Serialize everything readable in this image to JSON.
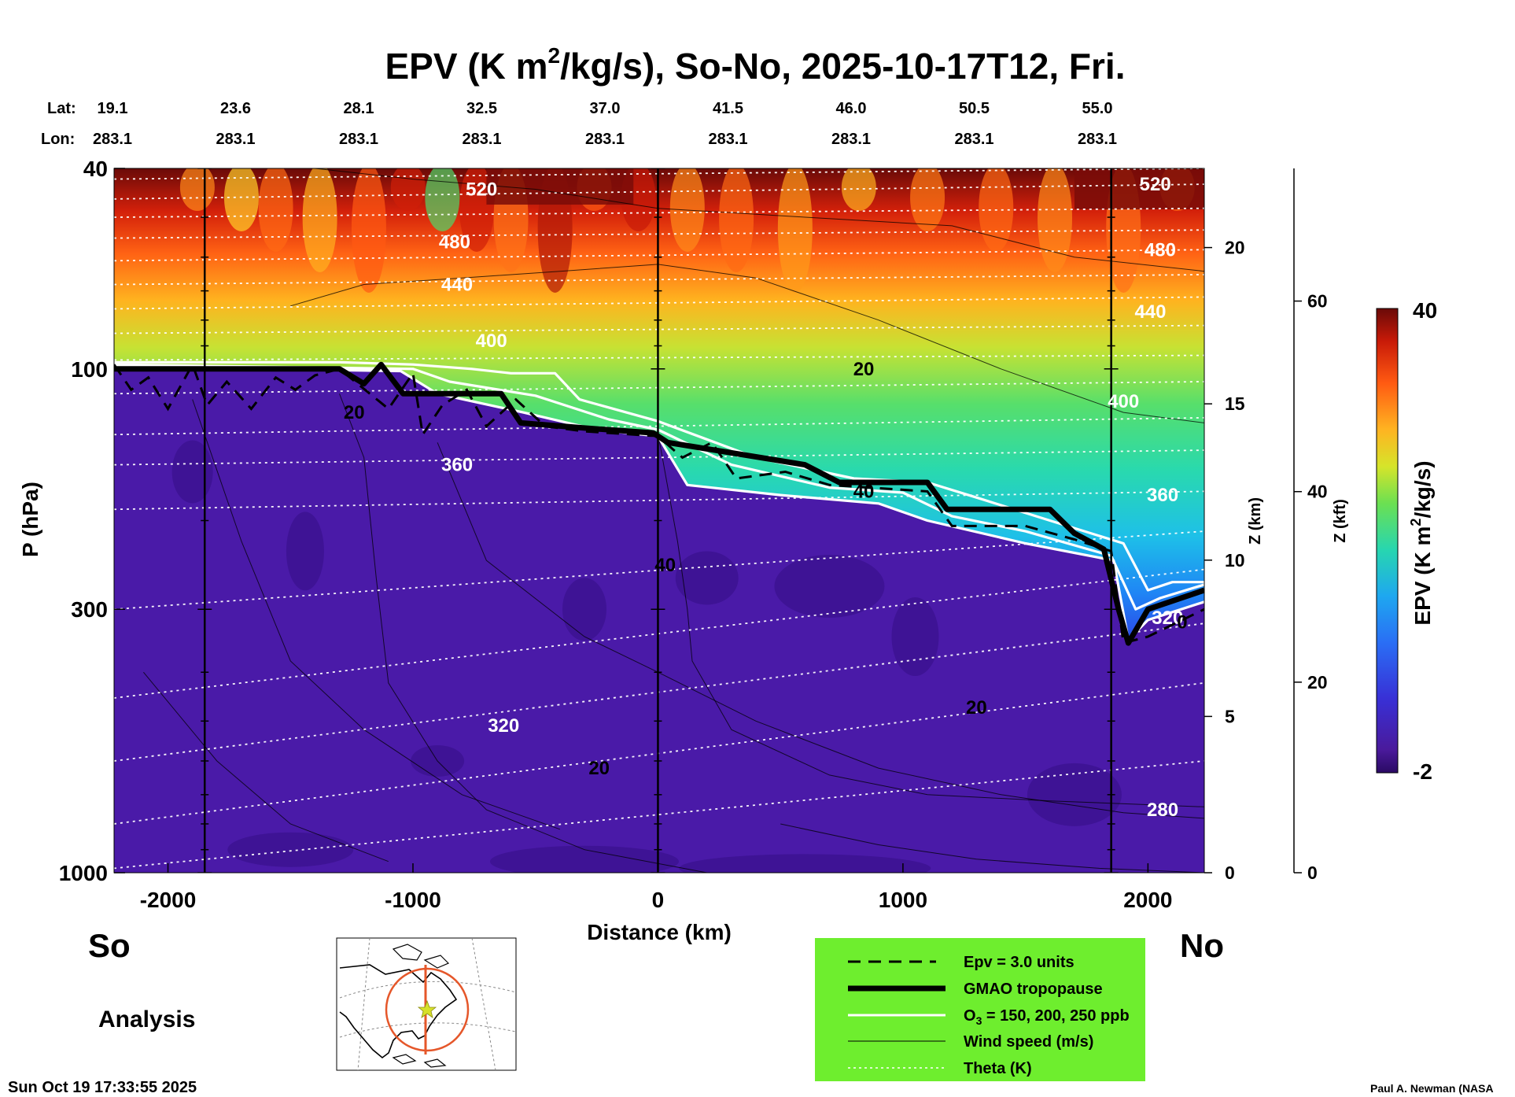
{
  "title": {
    "main_prefix": "EPV (K m",
    "main_sup": "2",
    "main_suffix": "/kg/s), So-No, 2025-10-17T12, Fri."
  },
  "chart_data": {
    "type": "heatmap",
    "x_axis": {
      "label": "Distance (km)",
      "range": [
        -2220,
        2230
      ],
      "ticks": [
        -2000,
        -1000,
        0,
        1000,
        2000
      ]
    },
    "y_axis": {
      "label": "P (hPa)",
      "scale": "log",
      "range": [
        1000,
        40
      ],
      "ticks": [
        40,
        100,
        300,
        1000
      ]
    },
    "z_km_axis": {
      "label": "Z (km)",
      "ticks": [
        0,
        5,
        10,
        15,
        20
      ]
    },
    "z_kft_axis": {
      "label": "Z (kft)",
      "ticks": [
        0,
        20,
        40,
        60
      ]
    },
    "top_axis": {
      "lat_label": "Lat:",
      "lon_label": "Lon:",
      "lat": [
        "19.1",
        "23.6",
        "28.1",
        "32.5",
        "37.0",
        "41.5",
        "46.0",
        "50.5",
        "55.0"
      ],
      "lon": [
        "283.1",
        "283.1",
        "283.1",
        "283.1",
        "283.1",
        "283.1",
        "283.1",
        "283.1",
        "283.1"
      ]
    },
    "colorbar": {
      "label_prefix": "EPV (K m",
      "label_sup": "2",
      "label_suffix": "/kg/s)",
      "min": -2,
      "max": 40,
      "min_label": "-2",
      "max_label": "40"
    },
    "theta_levels": [
      {
        "label": "520",
        "p_left": 45,
        "p_right": 42
      },
      {
        "label": "480",
        "p_left": 55,
        "p_right": 53
      },
      {
        "label": "440",
        "p_left": 68,
        "p_right": 65
      },
      {
        "label": "400",
        "p_left": 85,
        "p_right": 84
      },
      {
        "label": "360",
        "p_left": 155,
        "p_right": 110
      },
      {
        "label": "320",
        "p_left": 300,
        "p_right": 150
      },
      {
        "label": "280",
        "p_left": 600,
        "p_right": 230
      }
    ],
    "theta_label_positions": [
      {
        "label": "520",
        "x": -720,
        "p": 44
      },
      {
        "label": "480",
        "x": -830,
        "p": 56
      },
      {
        "label": "440",
        "x": -820,
        "p": 68
      },
      {
        "label": "400",
        "x": -680,
        "p": 88
      },
      {
        "label": "360",
        "x": -820,
        "p": 155
      },
      {
        "label": "320",
        "x": -630,
        "p": 510
      },
      {
        "label": "520",
        "x": 2030,
        "p": 43
      },
      {
        "label": "480",
        "x": 2050,
        "p": 58
      },
      {
        "label": "440",
        "x": 2010,
        "p": 77
      },
      {
        "label": "400",
        "x": 1900,
        "p": 116
      },
      {
        "label": "360",
        "x": 2060,
        "p": 178
      },
      {
        "label": "320",
        "x": 2080,
        "p": 312
      },
      {
        "label": "280",
        "x": 2060,
        "p": 750
      }
    ],
    "wind_labels": [
      {
        "label": "20",
        "x": -1240,
        "p": 122
      },
      {
        "label": "20",
        "x": 840,
        "p": 100
      },
      {
        "label": "40",
        "x": 840,
        "p": 175
      },
      {
        "label": "40",
        "x": 30,
        "p": 245
      },
      {
        "label": "20",
        "x": 1300,
        "p": 470
      },
      {
        "label": "20",
        "x": -240,
        "p": 620
      },
      {
        "label": "0",
        "x": 2140,
        "p": 318
      }
    ],
    "tropopause": [
      [
        -2220,
        100
      ],
      [
        -1300,
        100
      ],
      [
        -1200,
        107
      ],
      [
        -1130,
        98
      ],
      [
        -1040,
        112
      ],
      [
        -640,
        112
      ],
      [
        -560,
        128
      ],
      [
        -300,
        131
      ],
      [
        -20,
        134
      ],
      [
        40,
        140
      ],
      [
        600,
        155
      ],
      [
        740,
        168
      ],
      [
        1100,
        168
      ],
      [
        1180,
        190
      ],
      [
        1600,
        190
      ],
      [
        1700,
        212
      ],
      [
        1820,
        228
      ],
      [
        1880,
        300
      ],
      [
        1920,
        350
      ],
      [
        2000,
        300
      ],
      [
        2230,
        275
      ]
    ],
    "ozone_150": [
      [
        -2220,
        97
      ],
      [
        -1300,
        97
      ],
      [
        -1000,
        98
      ],
      [
        -760,
        100
      ],
      [
        -600,
        102
      ],
      [
        -420,
        102
      ],
      [
        -320,
        115
      ],
      [
        0,
        127
      ],
      [
        400,
        150
      ],
      [
        800,
        165
      ],
      [
        1100,
        168
      ],
      [
        1300,
        180
      ],
      [
        1600,
        200
      ],
      [
        1900,
        222
      ],
      [
        2000,
        275
      ],
      [
        2100,
        265
      ],
      [
        2230,
        265
      ]
    ],
    "ozone_200": [
      [
        -2220,
        98
      ],
      [
        -1000,
        100
      ],
      [
        -850,
        106
      ],
      [
        -500,
        113
      ],
      [
        -200,
        126
      ],
      [
        0,
        132
      ],
      [
        300,
        155
      ],
      [
        700,
        172
      ],
      [
        1000,
        176
      ],
      [
        1200,
        196
      ],
      [
        1500,
        210
      ],
      [
        1850,
        235
      ],
      [
        1950,
        300
      ],
      [
        2050,
        285
      ],
      [
        2230,
        268
      ]
    ],
    "ozone_250": [
      [
        -2220,
        99
      ],
      [
        -1050,
        101
      ],
      [
        -900,
        112
      ],
      [
        -550,
        122
      ],
      [
        -250,
        132
      ],
      [
        0,
        136
      ],
      [
        120,
        170
      ],
      [
        500,
        178
      ],
      [
        900,
        185
      ],
      [
        1100,
        200
      ],
      [
        1500,
        222
      ],
      [
        1860,
        240
      ],
      [
        1920,
        345
      ],
      [
        2000,
        315
      ],
      [
        2230,
        290
      ]
    ],
    "epv3_contour": [
      [
        -2220,
        98
      ],
      [
        -2150,
        110
      ],
      [
        -2080,
        104
      ],
      [
        -2000,
        120
      ],
      [
        -1900,
        98
      ],
      [
        -1840,
        118
      ],
      [
        -1760,
        106
      ],
      [
        -1660,
        120
      ],
      [
        -1560,
        104
      ],
      [
        -1480,
        110
      ],
      [
        -1400,
        103
      ],
      [
        -1300,
        100
      ],
      [
        -1100,
        120
      ],
      [
        -1000,
        102
      ],
      [
        -960,
        135
      ],
      [
        -880,
        118
      ],
      [
        -780,
        110
      ],
      [
        -700,
        130
      ],
      [
        -580,
        115
      ],
      [
        -460,
        130
      ],
      [
        -300,
        133
      ],
      [
        0,
        136
      ],
      [
        100,
        150
      ],
      [
        220,
        140
      ],
      [
        320,
        165
      ],
      [
        520,
        160
      ],
      [
        700,
        170
      ],
      [
        1100,
        175
      ],
      [
        1200,
        205
      ],
      [
        1500,
        205
      ],
      [
        1700,
        218
      ],
      [
        1850,
        230
      ],
      [
        1900,
        350
      ],
      [
        2000,
        340
      ],
      [
        2230,
        300
      ]
    ],
    "legend": [
      {
        "style": "dashed",
        "label": "Epv = 3.0 units"
      },
      {
        "style": "thick",
        "label": "GMAO tropopause"
      },
      {
        "style": "white-double",
        "label_prefix": "O",
        "label_sub": "3",
        "label_suffix": " = 150, 200, 250 ppb"
      },
      {
        "style": "thin",
        "label": "Wind speed (m/s)"
      },
      {
        "style": "dotted",
        "label": "Theta (K)"
      }
    ]
  },
  "footer": {
    "left_label": "So",
    "right_label": "No",
    "analysis_label": "Analysis",
    "timestamp": "Sun Oct 19 17:33:55 2025",
    "credit": "Paul A. Newman (NASA"
  },
  "colors": {
    "legend_bg": "#6eee2e",
    "tropopause": "#000000",
    "ozone": "#ffffff",
    "theta": "#ffffff",
    "map_circle": "#e5572a"
  }
}
